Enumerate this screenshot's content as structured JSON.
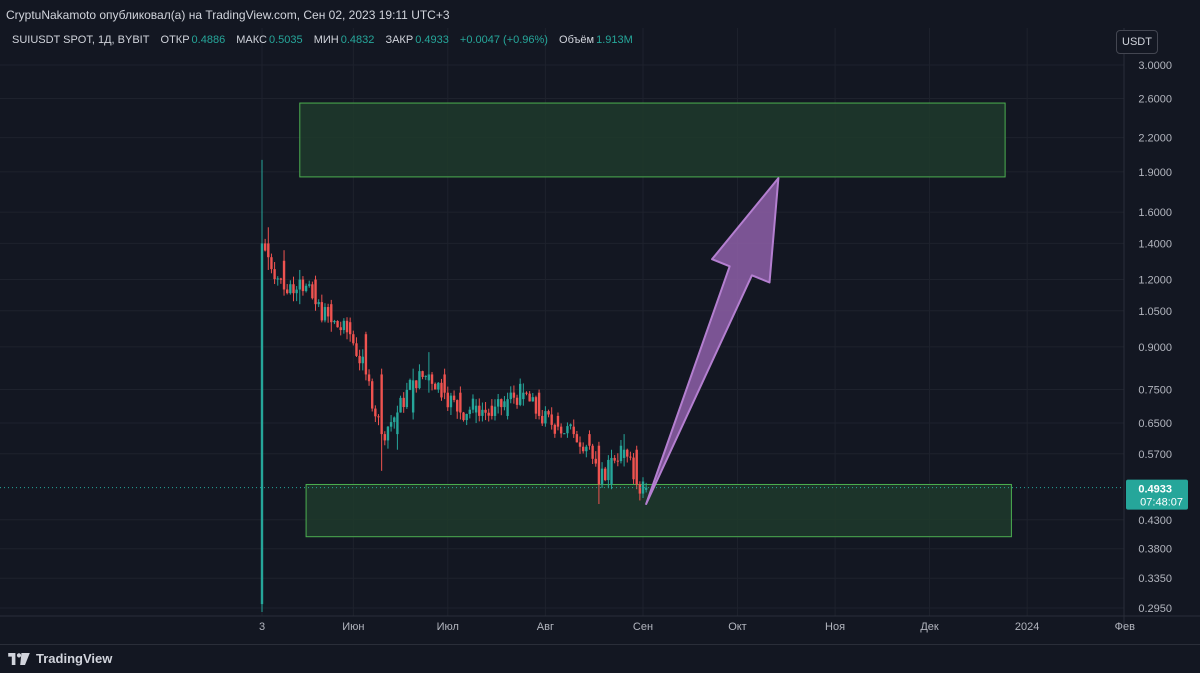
{
  "header": {
    "publish_line": "CryptuNakamoto опубликовал(а) на TradingView.com, Сен 02, 2023 19:11 UTC+3"
  },
  "legend": {
    "symbol": "SUIUSDT SPOT, 1Д, BYBIT",
    "open_label": "ОТКР",
    "open_value": "0.4886",
    "high_label": "МАКС",
    "high_value": "0.5035",
    "low_label": "МИН",
    "low_value": "0.4832",
    "close_label": "ЗАКР",
    "close_value": "0.4933",
    "change_value": "+0.0047 (+0.96%)",
    "volume_label": "Объём",
    "volume_value": "1.913M"
  },
  "currency_button": "USDT",
  "footer": {
    "brand": "TradingView"
  },
  "colors": {
    "up": "#26a69a",
    "down": "#ef5350",
    "zone_fill": "#1f3a2c",
    "zone_stroke": "#4caf50",
    "arrow_fill": "#8e5fa8",
    "arrow_stroke": "#b47fd0",
    "price_label_bg": "#26a69a"
  },
  "chart_data": {
    "type": "candlestick",
    "title": "",
    "scale": "log",
    "y_ticks": [
      "3.0000",
      "2.6000",
      "2.2000",
      "1.9000",
      "1.6000",
      "1.4000",
      "1.2000",
      "1.0500",
      "0.9000",
      "0.7500",
      "0.6500",
      "0.5700",
      "0.4300",
      "0.3800",
      "0.3350",
      "0.2950"
    ],
    "x_ticks": [
      "3",
      "Июн",
      "Июл",
      "Авг",
      "Сен",
      "Окт",
      "Ноя",
      "Дек",
      "2024",
      "Фев"
    ],
    "x_range": [
      "2023-05-03",
      "2024-02-25"
    ],
    "ylim": [
      0.29,
      3.2
    ],
    "current_price": "0.4933",
    "countdown": "07:48:07",
    "zones": [
      {
        "name": "resistance-zone",
        "from": "2023-05-15",
        "to": "2023-12-25",
        "low": 1.86,
        "high": 2.55
      },
      {
        "name": "support-zone",
        "from": "2023-05-17",
        "to": "2023-12-27",
        "low": 0.4,
        "high": 0.5
      }
    ],
    "arrow": {
      "from_date": "2023-09-02",
      "from_price": 0.46,
      "to_date": "2023-10-14",
      "to_price": 1.85
    },
    "candles_overview": [
      {
        "date": "2023-05-03",
        "open": 0.3,
        "high": 2.0,
        "low": 0.29,
        "close": 1.4
      },
      {
        "date": "2023-05-05",
        "open": 1.4,
        "high": 1.5,
        "low": 1.25,
        "close": 1.32
      },
      {
        "date": "2023-05-10",
        "open": 1.3,
        "high": 1.36,
        "low": 1.12,
        "close": 1.15
      },
      {
        "date": "2023-05-15",
        "open": 1.15,
        "high": 1.25,
        "low": 1.08,
        "close": 1.2
      },
      {
        "date": "2023-05-20",
        "open": 1.2,
        "high": 1.22,
        "low": 1.05,
        "close": 1.08
      },
      {
        "date": "2023-05-25",
        "open": 1.08,
        "high": 1.1,
        "low": 0.96,
        "close": 1.0
      },
      {
        "date": "2023-05-31",
        "open": 1.0,
        "high": 1.02,
        "low": 0.92,
        "close": 0.95
      },
      {
        "date": "2023-06-05",
        "open": 0.95,
        "high": 0.96,
        "low": 0.78,
        "close": 0.8
      },
      {
        "date": "2023-06-10",
        "open": 0.8,
        "high": 0.82,
        "low": 0.53,
        "close": 0.62
      },
      {
        "date": "2023-06-15",
        "open": 0.62,
        "high": 0.7,
        "low": 0.58,
        "close": 0.68
      },
      {
        "date": "2023-06-20",
        "open": 0.68,
        "high": 0.82,
        "low": 0.66,
        "close": 0.78
      },
      {
        "date": "2023-06-25",
        "open": 0.78,
        "high": 0.88,
        "low": 0.74,
        "close": 0.8
      },
      {
        "date": "2023-06-30",
        "open": 0.8,
        "high": 0.82,
        "low": 0.72,
        "close": 0.74
      },
      {
        "date": "2023-07-05",
        "open": 0.74,
        "high": 0.76,
        "low": 0.66,
        "close": 0.68
      },
      {
        "date": "2023-07-10",
        "open": 0.68,
        "high": 0.72,
        "low": 0.65,
        "close": 0.7
      },
      {
        "date": "2023-07-15",
        "open": 0.7,
        "high": 0.72,
        "low": 0.66,
        "close": 0.67
      },
      {
        "date": "2023-07-20",
        "open": 0.67,
        "high": 0.74,
        "low": 0.66,
        "close": 0.72
      },
      {
        "date": "2023-07-25",
        "open": 0.72,
        "high": 0.77,
        "low": 0.7,
        "close": 0.74
      },
      {
        "date": "2023-07-30",
        "open": 0.74,
        "high": 0.75,
        "low": 0.66,
        "close": 0.67
      },
      {
        "date": "2023-08-05",
        "open": 0.67,
        "high": 0.68,
        "low": 0.63,
        "close": 0.64
      },
      {
        "date": "2023-08-10",
        "open": 0.64,
        "high": 0.66,
        "low": 0.61,
        "close": 0.62
      },
      {
        "date": "2023-08-15",
        "open": 0.62,
        "high": 0.63,
        "low": 0.58,
        "close": 0.59
      },
      {
        "date": "2023-08-18",
        "open": 0.59,
        "high": 0.6,
        "low": 0.46,
        "close": 0.5
      },
      {
        "date": "2023-08-22",
        "open": 0.5,
        "high": 0.58,
        "low": 0.49,
        "close": 0.56
      },
      {
        "date": "2023-08-26",
        "open": 0.56,
        "high": 0.62,
        "low": 0.54,
        "close": 0.58
      },
      {
        "date": "2023-08-30",
        "open": 0.58,
        "high": 0.59,
        "low": 0.49,
        "close": 0.5
      },
      {
        "date": "2023-09-02",
        "open": 0.4886,
        "high": 0.5035,
        "low": 0.4832,
        "close": 0.4933
      }
    ]
  }
}
